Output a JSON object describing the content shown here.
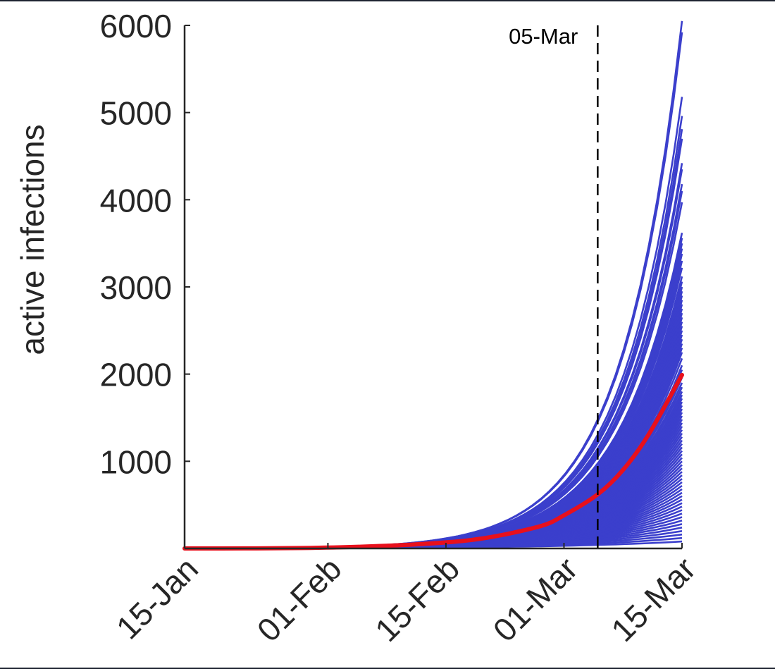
{
  "chart_data": {
    "type": "line",
    "title": "",
    "xlabel": "",
    "ylabel": "active infections",
    "x_start_date": "15-Jan",
    "x_end_date": "15-Mar",
    "x_ticks": [
      "15-Jan",
      "01-Feb",
      "15-Feb",
      "01-Mar",
      "15-Mar"
    ],
    "y_ticks": [
      "1000",
      "2000",
      "3000",
      "4000",
      "5000",
      "6000"
    ],
    "ylim": [
      0,
      6000
    ],
    "grid": false,
    "annotations": [
      {
        "label": "05-Mar",
        "x": "05-Mar",
        "style": "dashed-vertical"
      }
    ],
    "ensemble": {
      "color": "#3b3fcc",
      "final_values": [
        6050,
        5920,
        5180,
        4960,
        4810,
        4700,
        4420,
        4350,
        4180,
        4100,
        3970,
        3620,
        3560,
        3500,
        3440,
        3380,
        3300,
        3220,
        3120,
        3060,
        3000,
        2950,
        2900,
        2850,
        2800,
        2750,
        2700,
        2650,
        2600,
        2550,
        2500,
        2450,
        2400,
        2350,
        2300,
        2250,
        2180,
        2100,
        2050,
        2000,
        1960,
        1900,
        1850,
        1800,
        1760,
        1720,
        1680,
        1640,
        1600,
        1560,
        1520,
        1480,
        1440,
        1400,
        1360,
        1320,
        1280,
        1240,
        1200,
        1160,
        1120,
        1080,
        1040,
        1000,
        960,
        920,
        880,
        840,
        800,
        760,
        720,
        680,
        640,
        600,
        560,
        520,
        480,
        440,
        400,
        360,
        320,
        280,
        240,
        200,
        160,
        120,
        80
      ]
    },
    "series": [
      {
        "color": "#e8101c",
        "x": [
          "15-Jan",
          "22-Jan",
          "29-Jan",
          "05-Feb",
          "12-Feb",
          "19-Feb",
          "26-Feb",
          "01-Mar",
          "05-Mar",
          "08-Mar",
          "11-Mar",
          "15-Mar"
        ],
        "values": [
          0,
          1,
          5,
          20,
          50,
          110,
          250,
          380,
          620,
          900,
          1300,
          1990
        ]
      }
    ]
  }
}
